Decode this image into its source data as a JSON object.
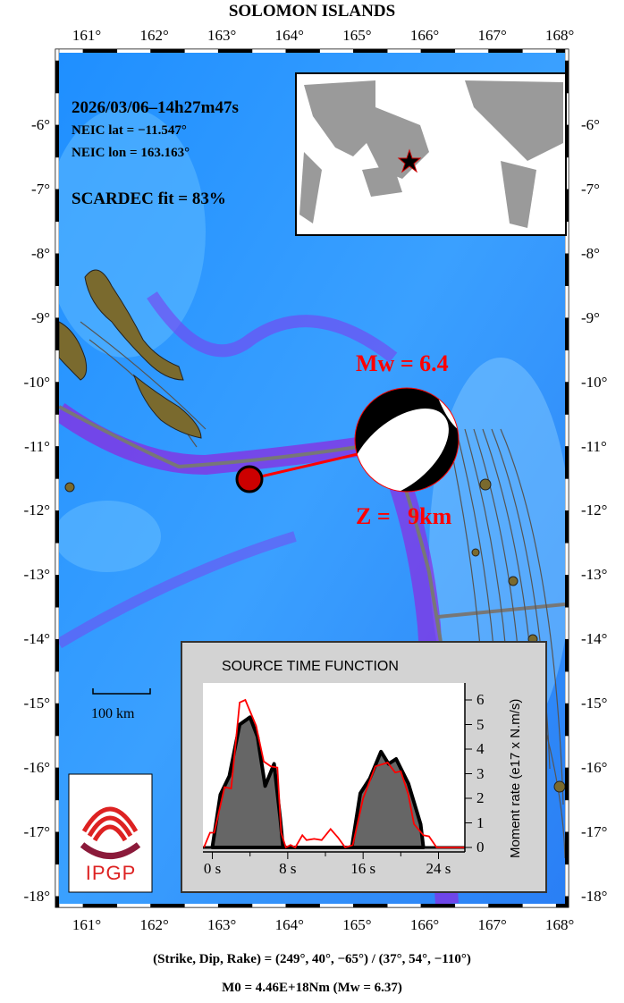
{
  "title": "SOLOMON ISLANDS",
  "lon_ticks": [
    "161°",
    "162°",
    "163°",
    "164°",
    "165°",
    "166°",
    "167°",
    "168°"
  ],
  "lat_ticks": [
    "-6°",
    "-7°",
    "-8°",
    "-9°",
    "-10°",
    "-11°",
    "-12°",
    "-13°",
    "-14°",
    "-15°",
    "-16°",
    "-17°",
    "-18°"
  ],
  "info": {
    "datetime": "2026/03/06–14h27m47s",
    "lat": "NEIC lat  = −11.547°",
    "lon": "NEIC lon = 163.163°",
    "fit": "SCARDEC fit = 83%"
  },
  "event": {
    "mw_label": "Mw = 6.4",
    "depth_label": "Z =   9km",
    "epicenter": {
      "lon": 163.163,
      "lat": -11.547
    },
    "colors": {
      "label": "#ff0000",
      "ocean": "#2a8cff",
      "trench": "#8a2be2",
      "land": "#7a6a2e"
    }
  },
  "scale_bar": "100 km",
  "logo": "IPGP",
  "chart_data": {
    "type": "area",
    "title": "SOURCE TIME FUNCTION",
    "ylabel": "Moment rate (e17 x N.m/s)",
    "xlabel": "",
    "xlim": [
      -1,
      26.8
    ],
    "ylim": [
      0,
      6.6
    ],
    "x_ticks": [
      "0 s",
      "8 s",
      "16 s",
      "24 s"
    ],
    "x_tick_values": [
      0,
      8,
      16,
      24
    ],
    "y_ticks": [
      "0",
      "1",
      "2",
      "3",
      "4",
      "5",
      "6"
    ],
    "series": [
      {
        "color": "#000000",
        "fill": "#666666",
        "x": [
          0,
          0.85,
          1.8,
          2.9,
          4.0,
          4.8,
          5.6,
          6.55,
          7.2,
          7.5,
          14.8,
          15.7,
          16.7,
          17.9,
          18.7,
          19.5,
          20.8,
          22.1,
          22.4
        ],
        "y": [
          0,
          2.15,
          2.9,
          5.0,
          5.3,
          4.5,
          2.5,
          3.4,
          1.2,
          0,
          0,
          2.2,
          2.8,
          3.9,
          3.4,
          3.6,
          2.6,
          0.95,
          0
        ]
      },
      {
        "color": "#ff0000",
        "x": [
          -0.9,
          -0.25,
          0.2,
          1.3,
          2.0,
          2.9,
          3.5,
          4.65,
          5.45,
          6.2,
          6.9,
          7.3,
          7.8,
          8.3,
          8.8,
          9.55,
          10.0,
          10.8,
          11.6,
          12.55,
          13.35,
          14.1,
          14.9,
          16.0,
          17.3,
          18.6,
          19.4,
          20.0,
          20.8,
          21.4,
          22.4,
          23.0,
          23.8,
          26.8
        ],
        "y": [
          0,
          0.6,
          0.6,
          2.45,
          2.4,
          5.9,
          6.0,
          4.95,
          3.5,
          3.3,
          3.25,
          0.6,
          0,
          0.1,
          0,
          0.5,
          0.3,
          0.35,
          0.3,
          0.75,
          0.4,
          0,
          0.1,
          2.0,
          3.3,
          3.45,
          3.05,
          3.1,
          2.15,
          0.95,
          0.5,
          0.45,
          0,
          0
        ]
      }
    ]
  },
  "footer": {
    "angles": "(Strike, Dip, Rake) = (249°, 40°, −65°) / (37°, 54°, −110°)",
    "moment": "M0 = 4.46E+18Nm  (Mw = 6.37)"
  }
}
